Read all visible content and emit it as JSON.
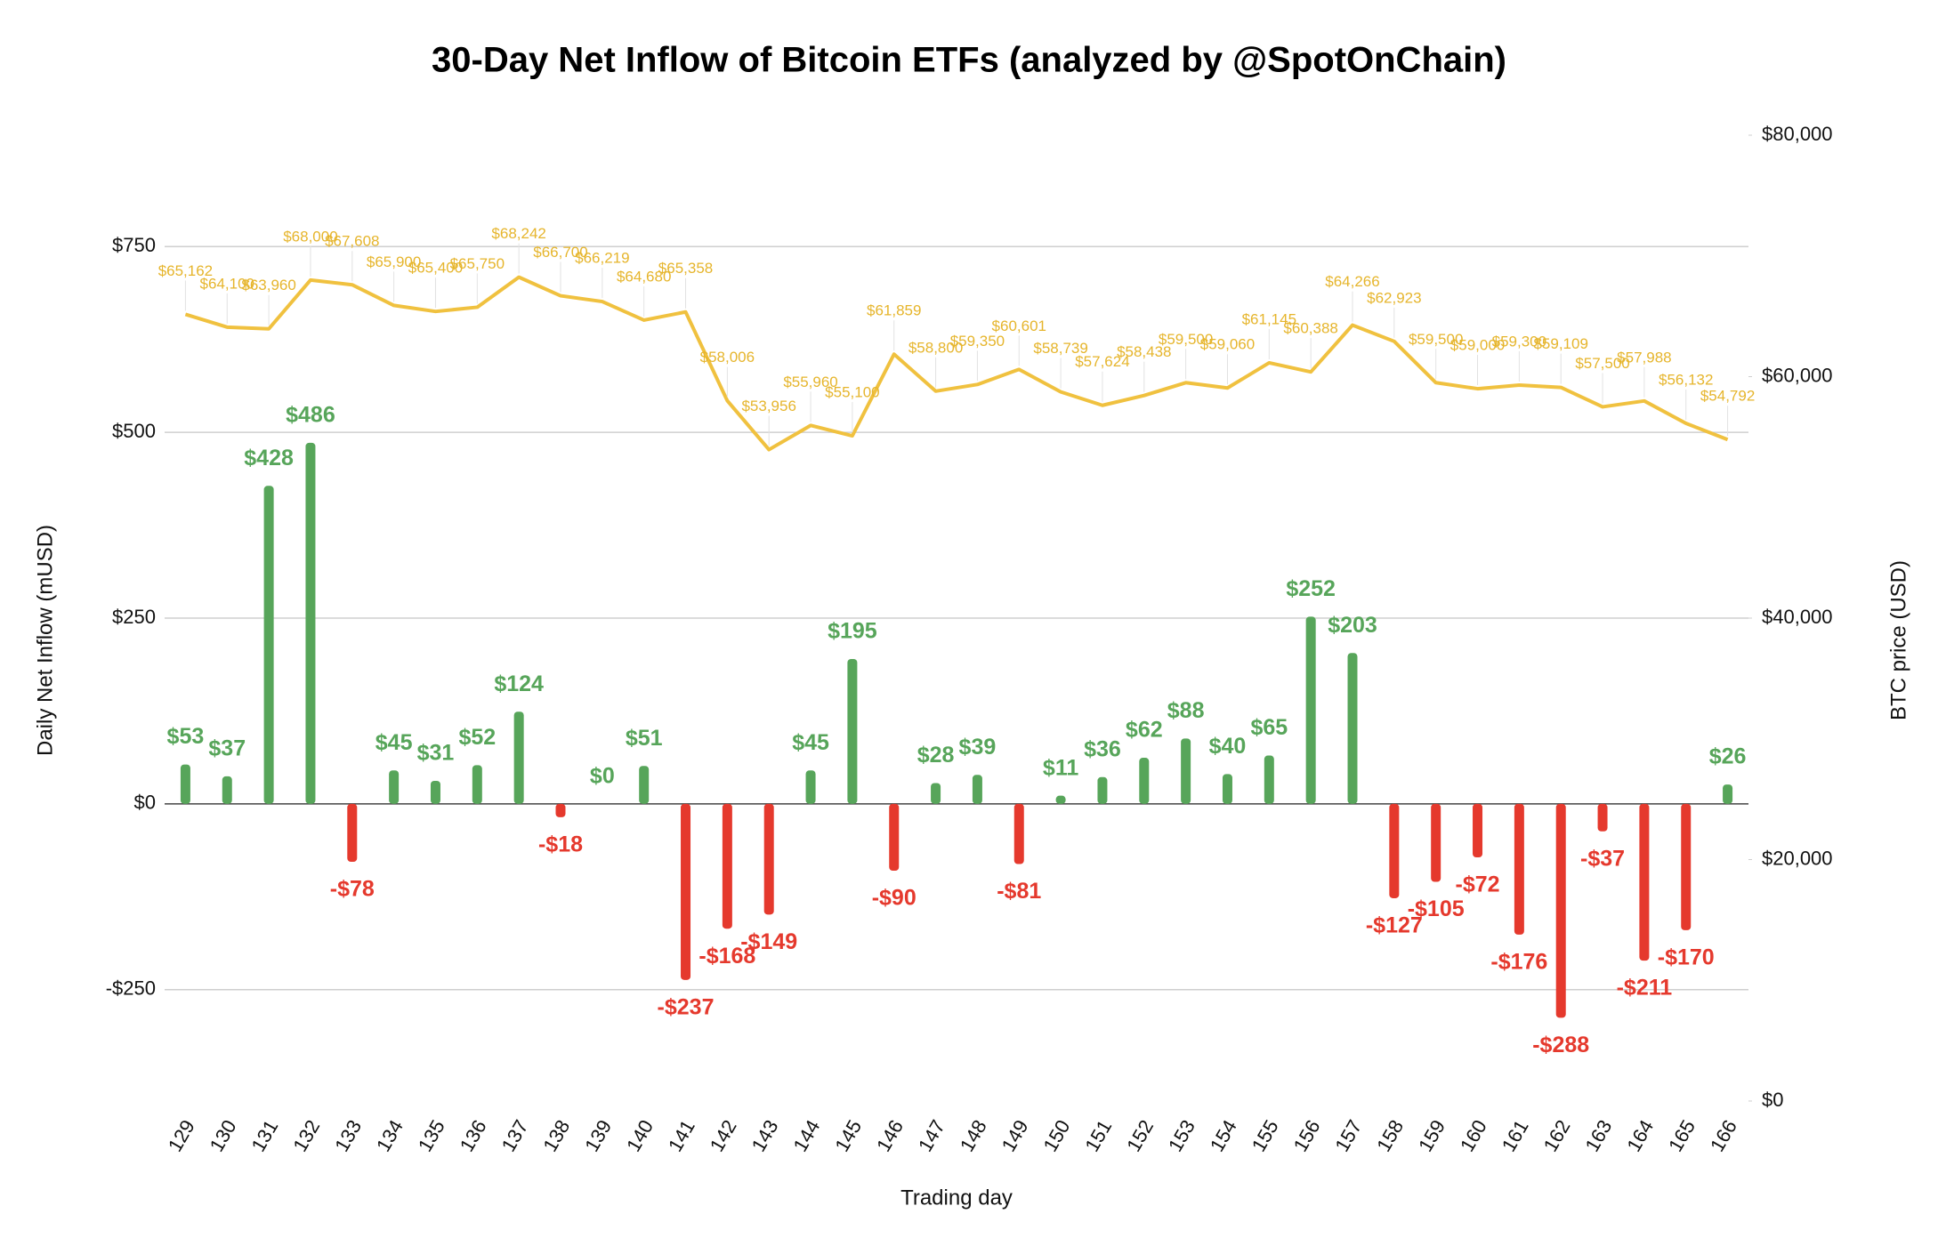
{
  "chart_data": {
    "type": "combo",
    "title": "30-Day Net Inflow of Bitcoin ETFs (analyzed by @SpotOnChain)",
    "x_label": "Trading day",
    "y_label": "Daily Net Inflow (mUSD)",
    "y2_label": "BTC price (USD)",
    "categories": [
      "129",
      "130",
      "131",
      "132",
      "133",
      "134",
      "135",
      "136",
      "137",
      "138",
      "139",
      "140",
      "141",
      "142",
      "143",
      "144",
      "145",
      "146",
      "147",
      "148",
      "149",
      "150",
      "151",
      "152",
      "153",
      "154",
      "155",
      "156",
      "157",
      "158",
      "159",
      "160",
      "161",
      "162",
      "163",
      "164",
      "165",
      "166"
    ],
    "series": [
      {
        "type": "bar",
        "color": "#57a55a",
        "negative_color": "#e5392d",
        "values": [
          53,
          37,
          428,
          486,
          -78,
          45,
          31,
          52,
          124,
          -18,
          0,
          51,
          -237,
          -168,
          -149,
          45,
          195,
          -90,
          28,
          39,
          -81,
          11,
          36,
          62,
          88,
          40,
          65,
          252,
          203,
          -127,
          -105,
          -72,
          -176,
          -288,
          -37,
          -211,
          -170,
          26
        ],
        "value_labels": [
          "$53",
          "$37",
          "$428",
          "$486",
          "-$78",
          "$45",
          "$31",
          "$52",
          "$124",
          "-$18",
          "$0",
          "$51",
          "-$237",
          "-$168",
          "-$149",
          "$45",
          "$195",
          "-$90",
          "$28",
          "$39",
          "-$81",
          "$11",
          "$36",
          "$62",
          "$88",
          "$40",
          "$65",
          "$252",
          "$203",
          "-$127",
          "-$105",
          "-$72",
          "-$176",
          "-$288",
          "-$37",
          "-$211",
          "-$170",
          "$26"
        ]
      },
      {
        "type": "line",
        "axis": "y2",
        "color": "#f0c13f",
        "values": [
          65162,
          64100,
          63960,
          68000,
          67608,
          65900,
          65400,
          65750,
          68242,
          66700,
          66219,
          64680,
          65358,
          58006,
          53956,
          55960,
          55100,
          61859,
          58800,
          59350,
          60601,
          58739,
          57624,
          58438,
          59500,
          59060,
          61145,
          60388,
          64266,
          62923,
          59500,
          59000,
          59300,
          59109,
          57500,
          57988,
          56132,
          54792
        ],
        "value_labels": [
          "$65,162",
          "$64,100",
          "$63,960",
          "$68,000",
          "$67,608",
          "$65,900",
          "$65,400",
          "$65,750",
          "$68,242",
          "$66,700",
          "$66,219",
          "$64,680",
          "$65,358",
          "$58,006",
          "$53,956",
          "$55,960",
          "$55,100",
          "$61,859",
          "$58,800",
          "$59,350",
          "$60,601",
          "$58,739",
          "$57,624",
          "$58,438",
          "$59,500",
          "$59,060",
          "$61,145",
          "$60,388",
          "$64,266",
          "$62,923",
          "$59,500",
          "$59,000",
          "$59,300",
          "$59,109",
          "$57,500",
          "$57,988",
          "$56,132",
          "$54,792"
        ]
      }
    ],
    "ylim": [
      -400,
      900
    ],
    "yticks": [
      {
        "value": -250,
        "label": "-$250"
      },
      {
        "value": 0,
        "label": "$0"
      },
      {
        "value": 250,
        "label": "$250"
      },
      {
        "value": 500,
        "label": "$500"
      },
      {
        "value": 750,
        "label": "$750"
      }
    ],
    "y2lim": [
      0,
      80000
    ],
    "y2ticks": [
      {
        "value": 0,
        "label": "$0"
      },
      {
        "value": 20000,
        "label": "$20,000"
      },
      {
        "value": 40000,
        "label": "$40,000"
      },
      {
        "value": 60000,
        "label": "$60,000"
      },
      {
        "value": 80000,
        "label": "$80,000"
      }
    ],
    "grid": true
  }
}
